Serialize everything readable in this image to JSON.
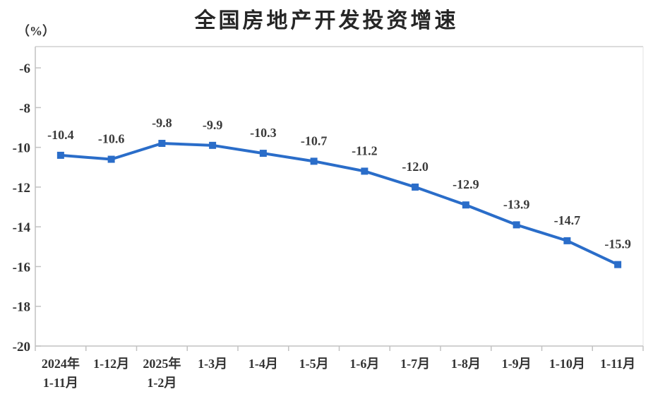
{
  "chart": {
    "title": "全国房地产开发投资增速",
    "unit_label": "（%）"
  },
  "chart_data": {
    "type": "line",
    "title": "全国房地产开发投资增速",
    "ylabel": "（%）",
    "xlabel": "",
    "categories": [
      [
        "2024年",
        "1-11月"
      ],
      [
        "1-12月"
      ],
      [
        "2025年",
        "1-2月"
      ],
      [
        "1-3月"
      ],
      [
        "1-4月"
      ],
      [
        "1-5月"
      ],
      [
        "1-6月"
      ],
      [
        "1-7月"
      ],
      [
        "1-8月"
      ],
      [
        "1-9月"
      ],
      [
        "1-10月"
      ],
      [
        "1-11月"
      ]
    ],
    "series": [
      {
        "name": "全国房地产开发投资增速",
        "values": [
          -10.4,
          -10.6,
          -9.8,
          -9.9,
          -10.3,
          -10.7,
          -11.2,
          -12.0,
          -12.9,
          -13.9,
          -14.7,
          -15.9
        ]
      }
    ],
    "ylim": [
      -20,
      -4.93
    ],
    "yticks": [
      -6,
      -8,
      -10,
      -12,
      -14,
      -16,
      -18,
      -20
    ],
    "grid": false,
    "legend_position": "none",
    "marker": "square",
    "data_labels_shown": true,
    "colors": {
      "line": "#2A6DC9",
      "marker": "#2A6DC9",
      "data_label": "#3A3A3A",
      "tick_label": "#333333",
      "axis_line": "#C2C2C2",
      "border_top": "#DCDCDC",
      "border_right": "#E3E3E3",
      "title": "#262626",
      "background": "#FFFFFF"
    }
  }
}
